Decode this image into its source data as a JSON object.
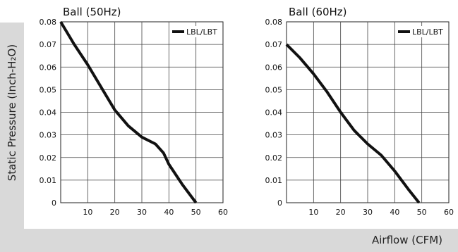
{
  "labels": {
    "y_axis": "Static Pressure (Inch-H₂O)",
    "x_axis": "Airflow (CFM)"
  },
  "chart_data": [
    {
      "type": "line",
      "title": "Ball (50Hz)",
      "xlim": [
        0,
        60
      ],
      "ylim": [
        0,
        0.08
      ],
      "x_ticks": [
        10,
        20,
        30,
        40,
        50,
        60
      ],
      "y_ticks": [
        "0",
        "0.01",
        "0.02",
        "0.03",
        "0.04",
        "0.05",
        "0.06",
        "0.07",
        "0.08"
      ],
      "grid": true,
      "legend_position": "top-right",
      "series": [
        {
          "name": "LBL/LBT",
          "color": "#111111",
          "points": [
            [
              0,
              0.08
            ],
            [
              5,
              0.07
            ],
            [
              10,
              0.061
            ],
            [
              15,
              0.051
            ],
            [
              20,
              0.041
            ],
            [
              25,
              0.034
            ],
            [
              30,
              0.029
            ],
            [
              35,
              0.026
            ],
            [
              38,
              0.022
            ],
            [
              40,
              0.017
            ],
            [
              45,
              0.008
            ],
            [
              50,
              0.0
            ]
          ]
        }
      ]
    },
    {
      "type": "line",
      "title": "Ball (60Hz)",
      "xlim": [
        0,
        60
      ],
      "ylim": [
        0,
        0.08
      ],
      "x_ticks": [
        10,
        20,
        30,
        40,
        50,
        60
      ],
      "y_ticks": [
        "0",
        "0.01",
        "0.02",
        "0.03",
        "0.04",
        "0.05",
        "0.06",
        "0.07",
        "0.08"
      ],
      "grid": true,
      "legend_position": "top-right",
      "series": [
        {
          "name": "LBL/LBT",
          "color": "#111111",
          "points": [
            [
              0,
              0.07
            ],
            [
              5,
              0.064
            ],
            [
              10,
              0.057
            ],
            [
              15,
              0.049
            ],
            [
              20,
              0.04
            ],
            [
              25,
              0.032
            ],
            [
              30,
              0.026
            ],
            [
              35,
              0.021
            ],
            [
              40,
              0.014
            ],
            [
              45,
              0.006
            ],
            [
              49,
              0.0
            ]
          ]
        }
      ]
    }
  ]
}
